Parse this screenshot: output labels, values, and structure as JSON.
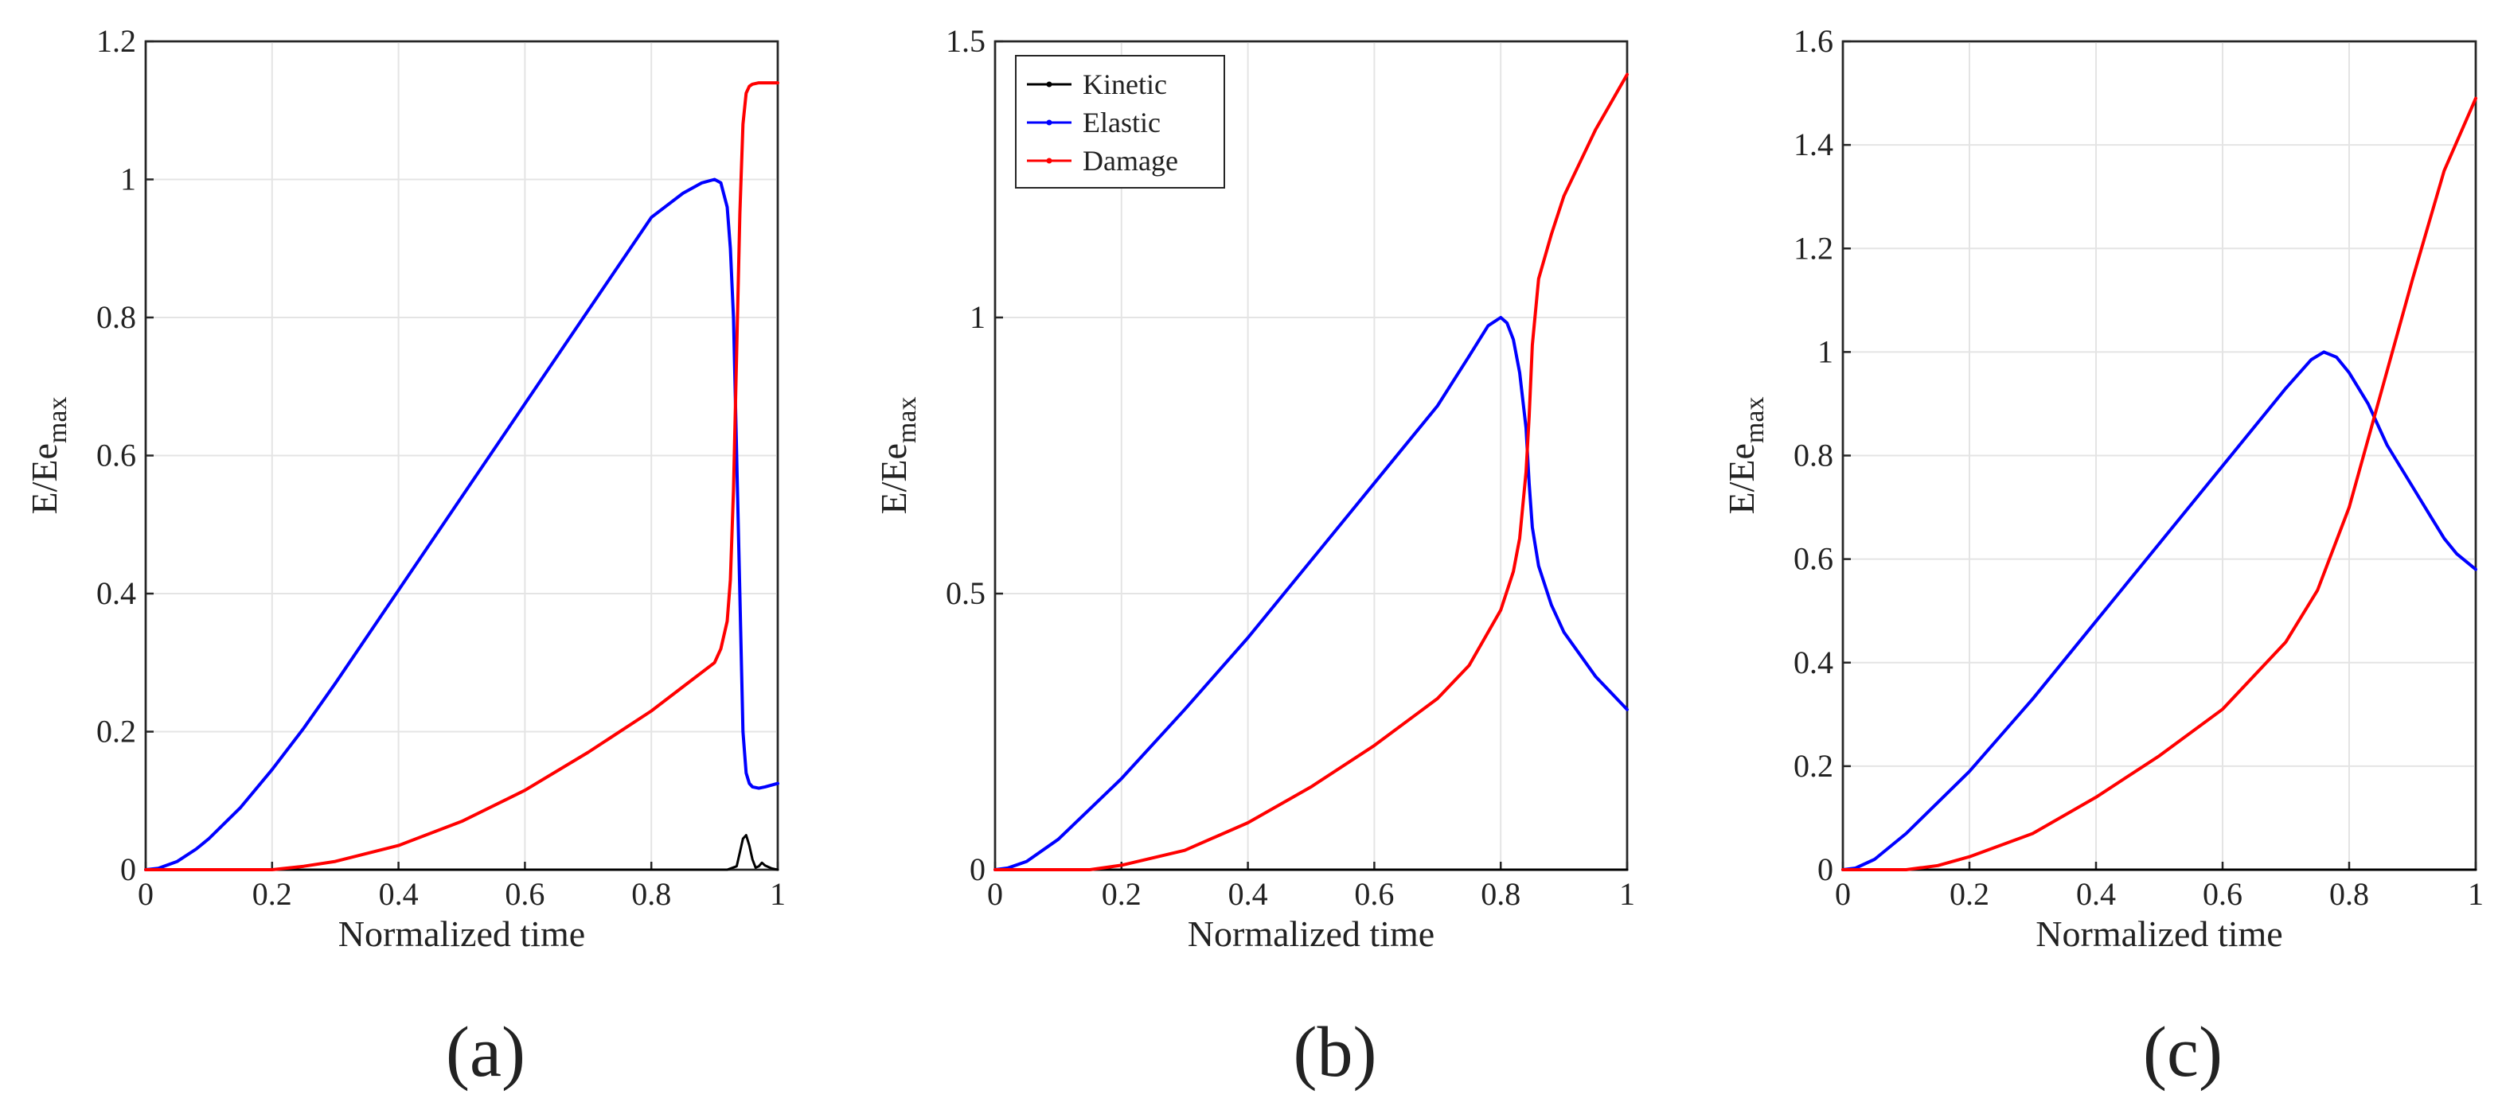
{
  "chart_data": [
    {
      "type": "line",
      "panel_label": "(a)",
      "xlabel": "Normalized time",
      "ylabel": "E/Ee",
      "ylabel_subscript": "max",
      "xlim": [
        0,
        1
      ],
      "ylim": [
        0,
        1.2
      ],
      "xticks": [
        0,
        0.2,
        0.4,
        0.6,
        0.8,
        1
      ],
      "xtick_labels": [
        "0",
        "0.2",
        "0.4",
        "0.6",
        "0.8",
        "1"
      ],
      "yticks": [
        0,
        0.2,
        0.4,
        0.6,
        0.8,
        1,
        1.2
      ],
      "ytick_labels": [
        "0",
        "0.2",
        "0.4",
        "0.6",
        "0.8",
        "1",
        "1.2"
      ],
      "grid": true,
      "legend": null,
      "series": [
        {
          "name": "Kinetic",
          "color": "#000000",
          "x": [
            0,
            0.5,
            0.92,
            0.935,
            0.94,
            0.945,
            0.95,
            0.955,
            0.96,
            0.965,
            0.97,
            0.975,
            0.98,
            0.99,
            1.0
          ],
          "y": [
            0,
            0,
            0,
            0.005,
            0.025,
            0.045,
            0.05,
            0.035,
            0.015,
            0.003,
            0.005,
            0.01,
            0.006,
            0.002,
            0
          ]
        },
        {
          "name": "Elastic",
          "color": "#0000ff",
          "x": [
            0,
            0.02,
            0.05,
            0.08,
            0.1,
            0.15,
            0.2,
            0.25,
            0.3,
            0.4,
            0.5,
            0.6,
            0.7,
            0.8,
            0.85,
            0.88,
            0.9,
            0.91,
            0.92,
            0.925,
            0.93,
            0.935,
            0.94,
            0.945,
            0.95,
            0.955,
            0.96,
            0.97,
            0.98,
            1.0
          ],
          "y": [
            0,
            0.002,
            0.012,
            0.03,
            0.045,
            0.09,
            0.145,
            0.205,
            0.27,
            0.405,
            0.54,
            0.675,
            0.81,
            0.945,
            0.98,
            0.995,
            1.0,
            0.995,
            0.96,
            0.9,
            0.8,
            0.6,
            0.4,
            0.2,
            0.14,
            0.125,
            0.12,
            0.118,
            0.12,
            0.125
          ]
        },
        {
          "name": "Damage",
          "color": "#ff0000",
          "x": [
            0,
            0.2,
            0.25,
            0.3,
            0.4,
            0.5,
            0.6,
            0.7,
            0.8,
            0.85,
            0.9,
            0.91,
            0.92,
            0.925,
            0.93,
            0.935,
            0.94,
            0.945,
            0.95,
            0.955,
            0.96,
            0.97,
            0.98,
            1.0
          ],
          "y": [
            0,
            0,
            0.005,
            0.012,
            0.035,
            0.07,
            0.115,
            0.17,
            0.23,
            0.265,
            0.3,
            0.32,
            0.36,
            0.42,
            0.55,
            0.75,
            0.95,
            1.08,
            1.125,
            1.135,
            1.138,
            1.14,
            1.14,
            1.14
          ]
        }
      ]
    },
    {
      "type": "line",
      "panel_label": "(b)",
      "xlabel": "Normalized time",
      "ylabel": "E/Ee",
      "ylabel_subscript": "max",
      "xlim": [
        0,
        1
      ],
      "ylim": [
        0,
        1.5
      ],
      "xticks": [
        0,
        0.2,
        0.4,
        0.6,
        0.8,
        1
      ],
      "xtick_labels": [
        "0",
        "0.2",
        "0.4",
        "0.6",
        "0.8",
        "1"
      ],
      "yticks": [
        0,
        0.5,
        1,
        1.5
      ],
      "ytick_labels": [
        "0",
        "0.5",
        "1",
        "1.5"
      ],
      "grid": true,
      "legend": {
        "position": "top-left",
        "entries": [
          "Kinetic",
          "Elastic",
          "Damage"
        ]
      },
      "series": [
        {
          "name": "Kinetic",
          "color": "#000000",
          "x": [
            0,
            1
          ],
          "y": [
            0,
            0
          ]
        },
        {
          "name": "Elastic",
          "color": "#0000ff",
          "x": [
            0,
            0.02,
            0.05,
            0.1,
            0.15,
            0.2,
            0.3,
            0.4,
            0.5,
            0.6,
            0.7,
            0.75,
            0.78,
            0.8,
            0.81,
            0.82,
            0.83,
            0.84,
            0.845,
            0.85,
            0.86,
            0.88,
            0.9,
            0.95,
            1.0
          ],
          "y": [
            0,
            0.003,
            0.015,
            0.055,
            0.11,
            0.165,
            0.29,
            0.42,
            0.56,
            0.7,
            0.84,
            0.93,
            0.985,
            1.0,
            0.99,
            0.96,
            0.9,
            0.8,
            0.7,
            0.62,
            0.55,
            0.48,
            0.43,
            0.35,
            0.29
          ]
        },
        {
          "name": "Damage",
          "color": "#ff0000",
          "x": [
            0,
            0.15,
            0.2,
            0.3,
            0.4,
            0.5,
            0.6,
            0.7,
            0.75,
            0.8,
            0.82,
            0.83,
            0.84,
            0.845,
            0.85,
            0.86,
            0.88,
            0.9,
            0.95,
            1.0
          ],
          "y": [
            0,
            0,
            0.008,
            0.035,
            0.085,
            0.15,
            0.225,
            0.31,
            0.37,
            0.47,
            0.54,
            0.6,
            0.72,
            0.82,
            0.95,
            1.07,
            1.15,
            1.22,
            1.34,
            1.44
          ]
        }
      ]
    },
    {
      "type": "line",
      "panel_label": "(c)",
      "xlabel": "Normalized time",
      "ylabel": "E/Ee",
      "ylabel_subscript": "max",
      "xlim": [
        0,
        1
      ],
      "ylim": [
        0,
        1.6
      ],
      "xticks": [
        0,
        0.2,
        0.4,
        0.6,
        0.8,
        1
      ],
      "xtick_labels": [
        "0",
        "0.2",
        "0.4",
        "0.6",
        "0.8",
        "1"
      ],
      "yticks": [
        0,
        0.2,
        0.4,
        0.6,
        0.8,
        1,
        1.2,
        1.4,
        1.6
      ],
      "ytick_labels": [
        "0",
        "0.2",
        "0.4",
        "0.6",
        "0.8",
        "1",
        "1.2",
        "1.4",
        "1.6"
      ],
      "grid": true,
      "legend": null,
      "series": [
        {
          "name": "Kinetic",
          "color": "#000000",
          "x": [
            0,
            1
          ],
          "y": [
            0,
            0
          ]
        },
        {
          "name": "Elastic",
          "color": "#0000ff",
          "x": [
            0,
            0.02,
            0.05,
            0.1,
            0.15,
            0.2,
            0.3,
            0.4,
            0.5,
            0.6,
            0.7,
            0.74,
            0.76,
            0.78,
            0.8,
            0.83,
            0.86,
            0.9,
            0.93,
            0.95,
            0.97,
            1.0
          ],
          "y": [
            0,
            0.003,
            0.02,
            0.07,
            0.13,
            0.19,
            0.33,
            0.48,
            0.63,
            0.78,
            0.93,
            0.985,
            1.0,
            0.99,
            0.96,
            0.9,
            0.82,
            0.74,
            0.68,
            0.64,
            0.61,
            0.58
          ]
        },
        {
          "name": "Damage",
          "color": "#ff0000",
          "x": [
            0,
            0.1,
            0.15,
            0.2,
            0.3,
            0.4,
            0.5,
            0.6,
            0.7,
            0.75,
            0.8,
            0.85,
            0.9,
            0.95,
            1.0
          ],
          "y": [
            0,
            0,
            0.008,
            0.025,
            0.07,
            0.14,
            0.22,
            0.31,
            0.44,
            0.54,
            0.7,
            0.92,
            1.14,
            1.35,
            1.49
          ]
        }
      ]
    }
  ]
}
